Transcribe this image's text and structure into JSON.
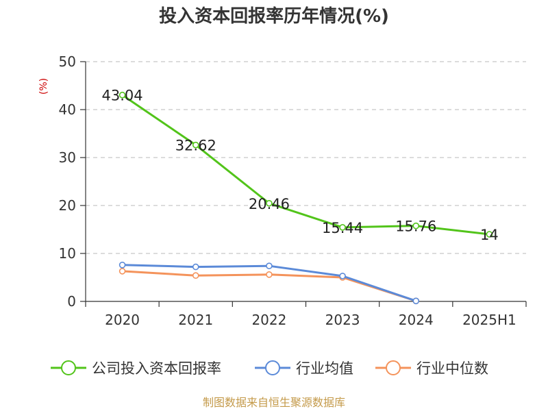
{
  "chart_data": {
    "type": "line",
    "title": "投入资本回报率历年情况(%)",
    "ylabel": "(%)",
    "categories": [
      "2020",
      "2021",
      "2022",
      "2023",
      "2024",
      "2025H1"
    ],
    "ylim": [
      0,
      50
    ],
    "yticks": [
      "0",
      "10",
      "20",
      "30",
      "40",
      "50"
    ],
    "grid": true,
    "legend_position": "bottom",
    "series": [
      {
        "name": "公司投入资本回报率",
        "color": "#52c41a",
        "values": [
          43.04,
          32.62,
          20.46,
          15.44,
          15.76,
          14
        ],
        "labels": [
          "43.04",
          "32.62",
          "20.46",
          "15.44",
          "15.76",
          "14"
        ]
      },
      {
        "name": "行业均值",
        "color": "#5b8ad8",
        "values": [
          7.6,
          7.2,
          7.4,
          5.3,
          0.1,
          null
        ]
      },
      {
        "name": "行业中位数",
        "color": "#f4935b",
        "values": [
          6.3,
          5.4,
          5.6,
          5.0,
          0.1,
          null
        ]
      }
    ]
  },
  "source": "制图数据来自恒生聚源数据库"
}
